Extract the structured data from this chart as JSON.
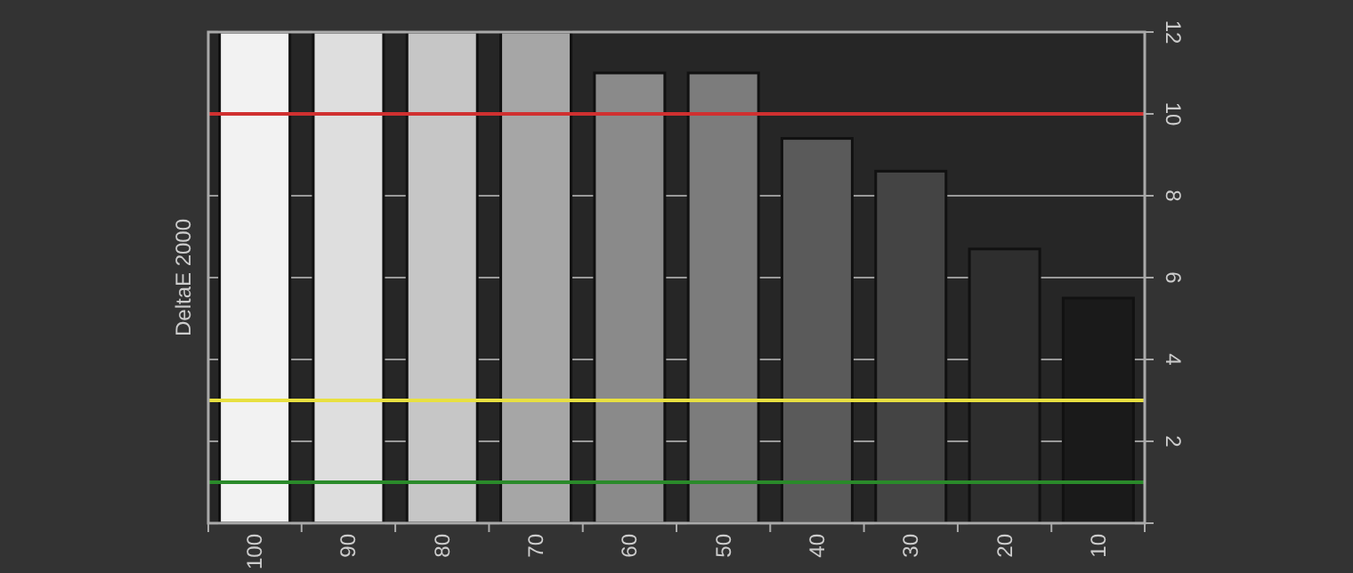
{
  "chart_data": {
    "type": "bar",
    "ylabel": "DeltaE 2000",
    "categories": [
      "100",
      "90",
      "80",
      "70",
      "60",
      "50",
      "40",
      "30",
      "20",
      "10"
    ],
    "values": [
      12,
      12,
      12,
      12,
      11,
      11,
      9.4,
      8.6,
      6.7,
      5.5
    ],
    "colors": [
      "#f2f2f2",
      "#dedede",
      "#c6c6c6",
      "#a6a6a6",
      "#8a8a8a",
      "#7c7c7c",
      "#5a5a5a",
      "#444444",
      "#2e2e2e",
      "#1a1a1a"
    ],
    "ylim": [
      0,
      12
    ],
    "yticks": [
      {
        "value": 0,
        "label": null
      },
      2,
      4,
      6,
      8,
      10,
      12
    ],
    "grid": "y",
    "ref_lines": [
      {
        "axis": "y",
        "value": 10,
        "color": "#d03030"
      },
      {
        "axis": "y",
        "value": 3,
        "color": "#e8e040"
      },
      {
        "axis": "y",
        "value": 1,
        "color": "#2a8a2a"
      }
    ]
  }
}
